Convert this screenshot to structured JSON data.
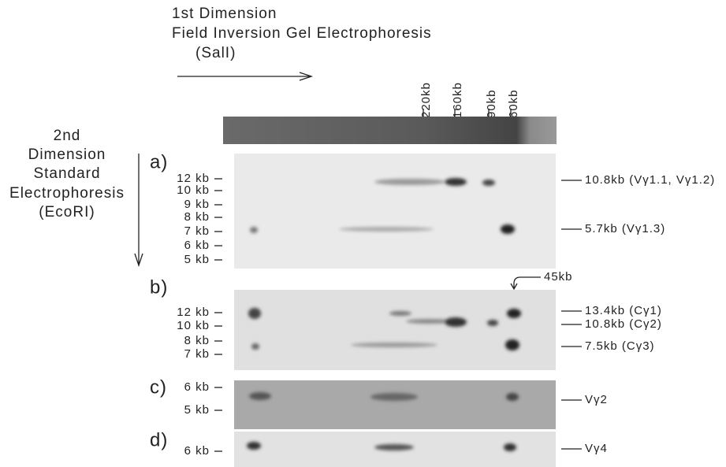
{
  "header": {
    "lines": [
      "1st Dimension",
      "Field Inversion Gel Electrophoresis",
      "(SalI)"
    ]
  },
  "side_label": {
    "lines": [
      "2nd",
      "Dimension",
      "Standard",
      "Electrophoresis",
      "(EcoRI)"
    ]
  },
  "size_markers": [
    "220kb",
    "160kb",
    "90kb",
    "60kb"
  ],
  "annotation": "45kb",
  "panels": [
    {
      "label": "a)",
      "left_markers": [
        "12 kb",
        "10 kb",
        "9 kb",
        "8 kb",
        "7 kb",
        "6 kb",
        "5 kb"
      ],
      "right_labels": [
        "10.8kb (Vγ1.1, Vγ1.2)",
        "5.7kb (Vγ1.3)"
      ]
    },
    {
      "label": "b)",
      "left_markers": [
        "12 kb",
        "10 kb",
        "8 kb",
        "7 kb"
      ],
      "right_labels": [
        "13.4kb (Cγ1)",
        "10.8kb (Cγ2)",
        "7.5kb (Cγ3)"
      ]
    },
    {
      "label": "c)",
      "left_markers": [
        "6 kb",
        "5 kb"
      ],
      "right_labels": [
        "Vγ2"
      ]
    },
    {
      "label": "d)",
      "left_markers": [
        "6 kb"
      ],
      "right_labels": [
        "Vγ4"
      ]
    }
  ]
}
